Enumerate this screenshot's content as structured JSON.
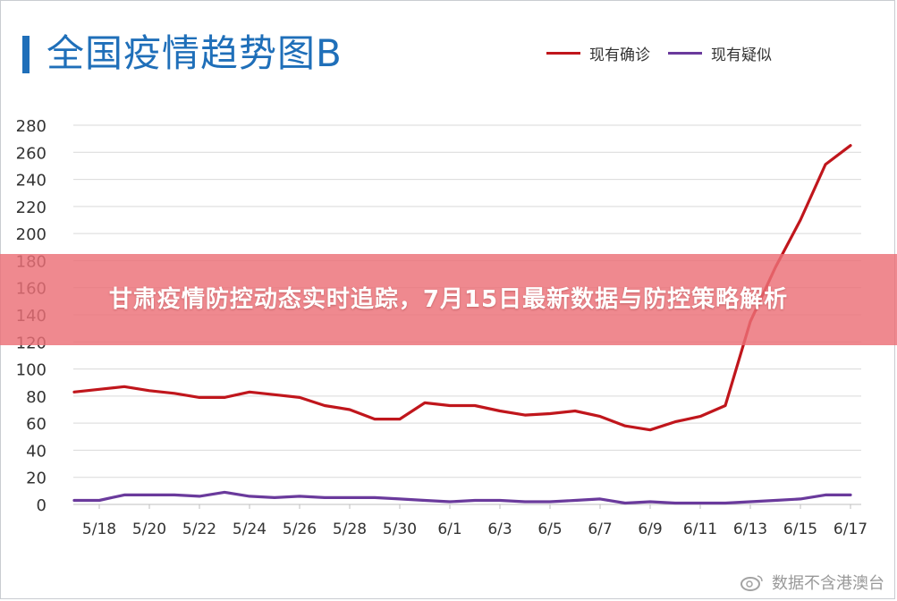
{
  "chart_data": {
    "type": "line",
    "title": "全国疫情趋势图B",
    "xlabel": "",
    "ylabel": "",
    "ylim": [
      0,
      280
    ],
    "yticks": [
      "0",
      "20",
      "40",
      "60",
      "80",
      "100",
      "120",
      "140",
      "160",
      "180",
      "200",
      "220",
      "240",
      "260",
      "280"
    ],
    "x": [
      "5/17",
      "5/18",
      "5/19",
      "5/20",
      "5/21",
      "5/22",
      "5/23",
      "5/24",
      "5/25",
      "5/26",
      "5/27",
      "5/28",
      "5/29",
      "5/30",
      "5/31",
      "6/1",
      "6/2",
      "6/3",
      "6/4",
      "6/5",
      "6/6",
      "6/7",
      "6/8",
      "6/9",
      "6/10",
      "6/11",
      "6/12",
      "6/13",
      "6/14",
      "6/15",
      "6/16",
      "6/17"
    ],
    "xticks": [
      "5/18",
      "5/20",
      "5/22",
      "5/24",
      "5/26",
      "5/28",
      "5/30",
      "6/1",
      "6/3",
      "6/5",
      "6/7",
      "6/9",
      "6/11",
      "6/13",
      "6/15",
      "6/17"
    ],
    "series": [
      {
        "name": "现有确诊",
        "color": "#c0161c",
        "values": [
          83,
          85,
          87,
          84,
          82,
          79,
          79,
          83,
          81,
          79,
          73,
          70,
          63,
          63,
          75,
          73,
          73,
          69,
          66,
          67,
          69,
          65,
          58,
          55,
          61,
          65,
          73,
          135,
          175,
          210,
          251,
          265
        ]
      },
      {
        "name": "现有疑似",
        "color": "#6a3a9c",
        "values": [
          3,
          3,
          7,
          7,
          7,
          6,
          9,
          6,
          5,
          6,
          5,
          5,
          5,
          4,
          3,
          2,
          3,
          3,
          2,
          2,
          3,
          4,
          1,
          2,
          1,
          1,
          1,
          2,
          3,
          4,
          7,
          7
        ]
      }
    ],
    "grid": true,
    "legend_position": "top-right"
  },
  "banner": {
    "text": "甘肃疫情防控动态实时追踪，7月15日最新数据与防控策略解析"
  },
  "watermark": {
    "text": "数据不含港澳台"
  }
}
